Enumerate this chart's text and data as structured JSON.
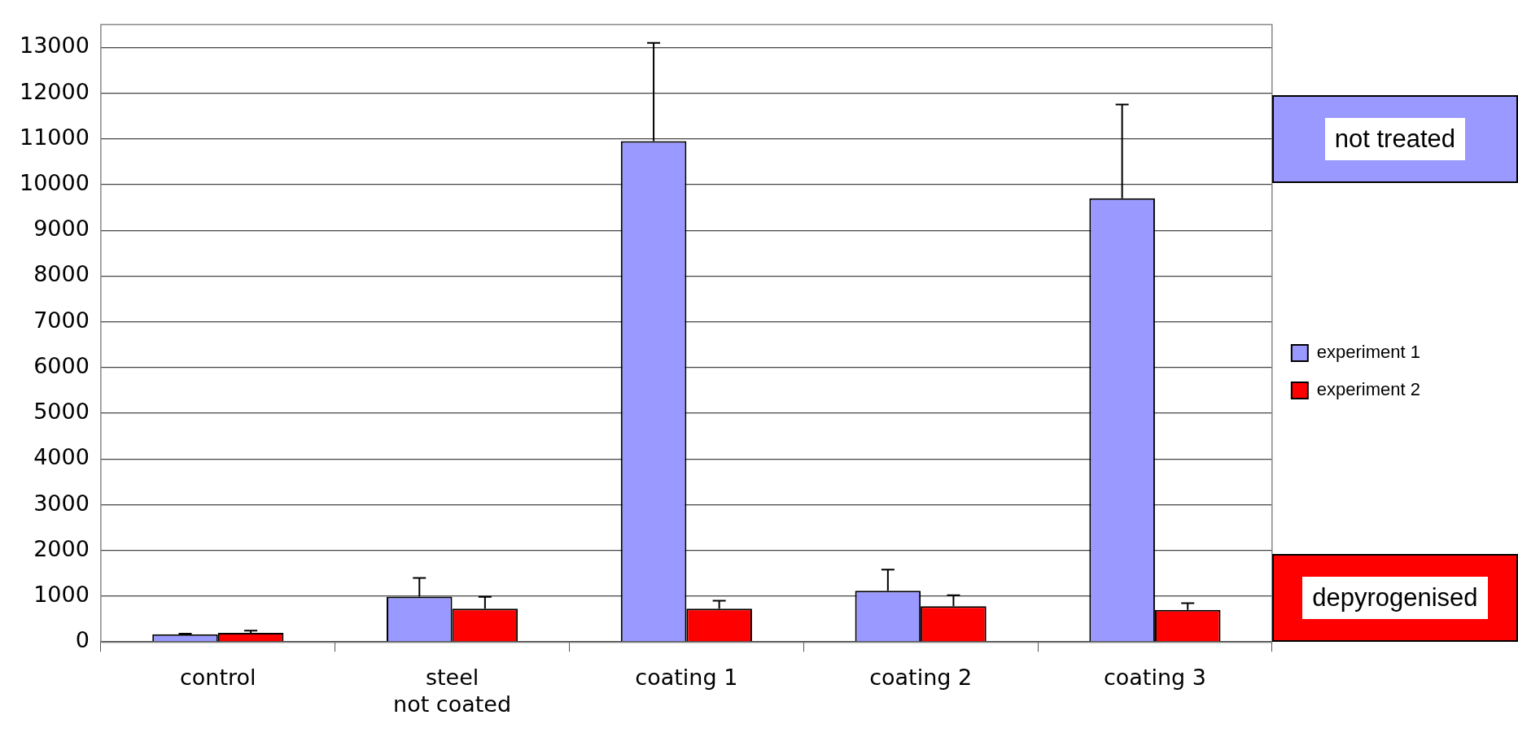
{
  "chart_data": {
    "type": "bar",
    "categories": [
      "control",
      "steel\nnot coated",
      "coating 1",
      "coating 2",
      "coating 3"
    ],
    "series": [
      {
        "name": "experiment 1",
        "color": "#9999ff",
        "values": [
          170,
          990,
          10950,
          1120,
          9700
        ],
        "errors": [
          [
            170,
            180
          ],
          [
            990,
            1400
          ],
          [
            10950,
            13100
          ],
          [
            1120,
            1580
          ],
          [
            9700,
            11750
          ]
        ]
      },
      {
        "name": "experiment 2",
        "color": "#ff0000",
        "values": [
          200,
          730,
          730,
          780,
          700
        ],
        "errors": [
          [
            200,
            250
          ],
          [
            730,
            985
          ],
          [
            730,
            900
          ],
          [
            780,
            1020
          ],
          [
            700,
            850
          ]
        ]
      }
    ],
    "ylim": [
      0,
      13500
    ],
    "yticks": [
      0,
      1000,
      2000,
      3000,
      4000,
      5000,
      6000,
      7000,
      8000,
      9000,
      10000,
      11000,
      12000,
      13000
    ],
    "grid": "y",
    "legend": "right",
    "annotations": [
      "not treated",
      "depyrogenised"
    ]
  }
}
